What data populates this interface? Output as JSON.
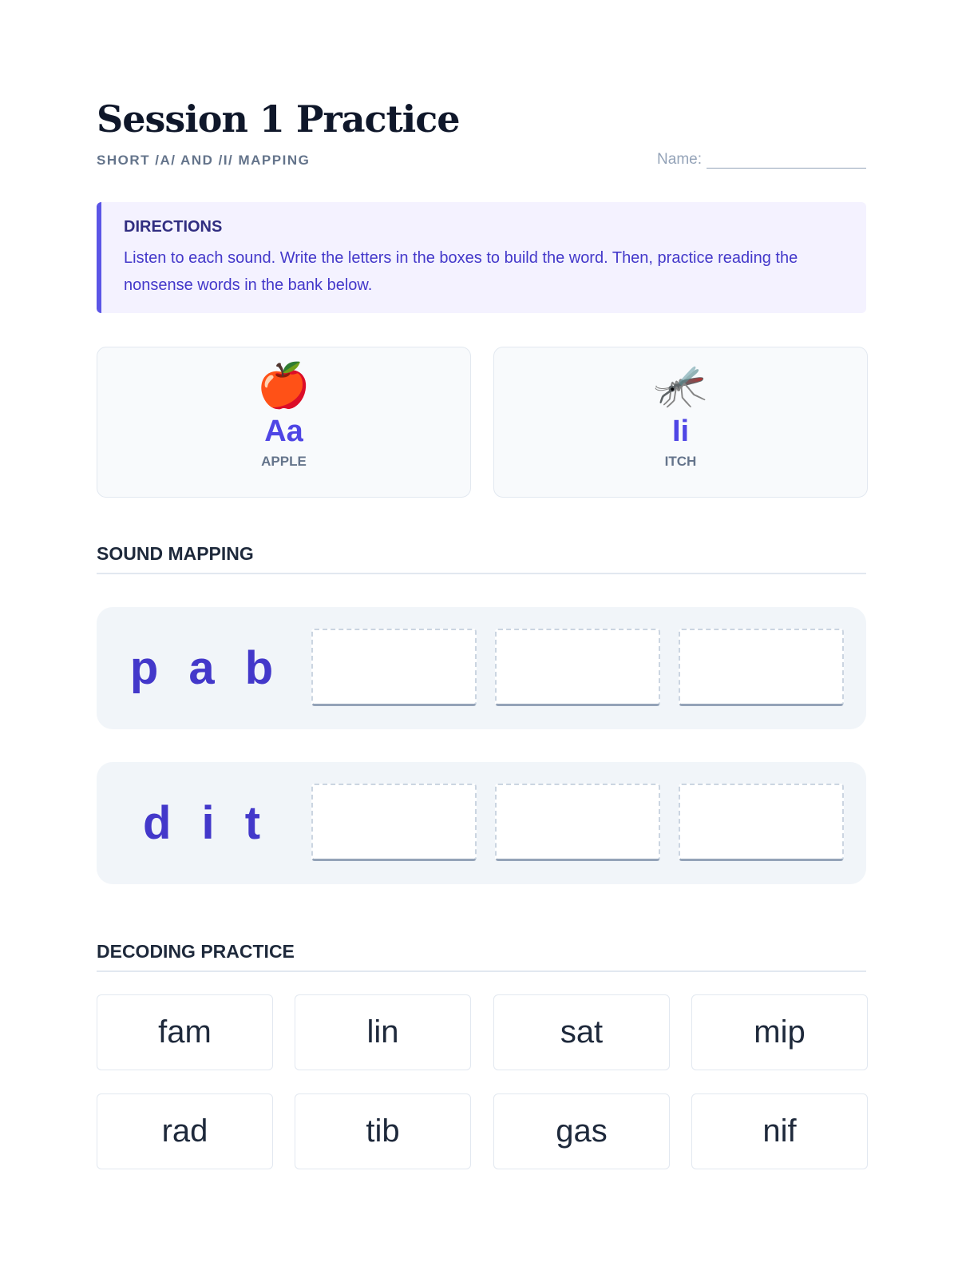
{
  "header": {
    "title": "Session 1 Practice",
    "subtitle": "SHORT /A/ AND /I/ MAPPING",
    "name_label": "Name:"
  },
  "directions": {
    "heading": "DIRECTIONS",
    "text": "Listen to each sound. Write the letters in the boxes to build the word. Then, practice reading the nonsense words in the bank below."
  },
  "cards": [
    {
      "emoji": "🍎",
      "icon": "apple-icon",
      "letter": "Aa",
      "keyword": "APPLE"
    },
    {
      "emoji": "🦟",
      "icon": "mosquito-icon",
      "letter": "Ii",
      "keyword": "ITCH"
    }
  ],
  "sound_mapping": {
    "heading": "SOUND MAPPING",
    "words": [
      "p a b",
      "d i t"
    ]
  },
  "decoding": {
    "heading": "DECODING PRACTICE",
    "words": [
      "fam",
      "lin",
      "sat",
      "mip",
      "rad",
      "tib",
      "gas",
      "nif"
    ]
  },
  "colors": {
    "accent": "#4f46e5",
    "directions_bg": "#f4f2ff",
    "row_bg": "#f1f5f9"
  }
}
